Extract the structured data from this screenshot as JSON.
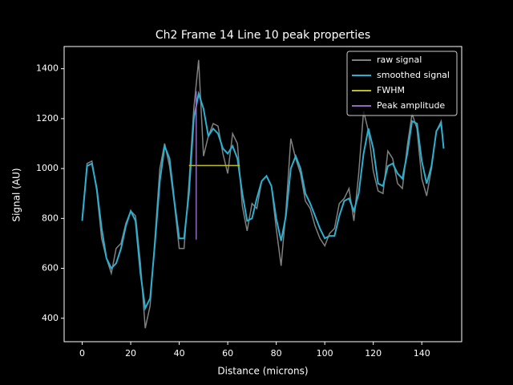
{
  "chart_data": {
    "type": "line",
    "title": "Ch2 Frame 14 Line 10 peak properties",
    "xlabel": "Distance (microns)",
    "ylabel": "Signal (AU)",
    "x": [
      0,
      2,
      4,
      6,
      8,
      10,
      12,
      14,
      16,
      18,
      20,
      22,
      24,
      26,
      28,
      30,
      32,
      34,
      36,
      38,
      40,
      42,
      44,
      46,
      48,
      50,
      52,
      54,
      56,
      58,
      60,
      62,
      64,
      66,
      68,
      70,
      72,
      74,
      76,
      78,
      80,
      82,
      84,
      86,
      88,
      90,
      92,
      94,
      96,
      98,
      100,
      102,
      104,
      106,
      108,
      110,
      112,
      114,
      116,
      118,
      120,
      122,
      124,
      126,
      128,
      130,
      132,
      134,
      136,
      138,
      140,
      142,
      144,
      146,
      148,
      149
    ],
    "series": [
      {
        "name": "raw signal",
        "color": "#808080",
        "values": [
          800,
          1020,
          1030,
          910,
          720,
          640,
          580,
          680,
          700,
          780,
          830,
          810,
          620,
          360,
          450,
          720,
          1000,
          1100,
          1010,
          860,
          680,
          680,
          940,
          1240,
          1435,
          1050,
          1130,
          1180,
          1170,
          1060,
          980,
          1140,
          1100,
          850,
          750,
          860,
          840,
          950,
          970,
          930,
          760,
          610,
          830,
          1120,
          1040,
          980,
          870,
          840,
          770,
          720,
          690,
          740,
          760,
          860,
          880,
          920,
          790,
          980,
          1230,
          1150,
          990,
          910,
          900,
          1070,
          1040,
          940,
          920,
          1090,
          1220,
          1160,
          960,
          890,
          1000,
          1150,
          1190,
          1080
        ]
      },
      {
        "name": "smoothed signal",
        "color": "#2ab0d0",
        "values": [
          790,
          1010,
          1020,
          920,
          760,
          640,
          600,
          620,
          680,
          770,
          830,
          790,
          580,
          440,
          480,
          700,
          950,
          1090,
          1040,
          870,
          720,
          720,
          900,
          1200,
          1300,
          1240,
          1130,
          1160,
          1140,
          1080,
          1060,
          1090,
          1040,
          900,
          790,
          800,
          880,
          950,
          970,
          930,
          800,
          710,
          810,
          1000,
          1050,
          1000,
          900,
          860,
          810,
          760,
          720,
          730,
          730,
          810,
          870,
          880,
          830,
          900,
          1060,
          1160,
          1080,
          940,
          930,
          1010,
          1020,
          980,
          960,
          1060,
          1190,
          1180,
          1030,
          940,
          1010,
          1150,
          1180,
          1080
        ]
      }
    ],
    "fwhm": {
      "name": "FWHM",
      "color": "#bcbd22",
      "y": 1012,
      "xmin": 44,
      "xmax": 65
    },
    "peak_amplitude": {
      "name": "Peak amplitude",
      "color": "#9467bd",
      "x": 47,
      "ymin": 715,
      "ymax": 1310
    },
    "xlim": [
      -7.45,
      156.45
    ],
    "ylim": [
      306,
      1489
    ],
    "xticks": [
      0,
      20,
      40,
      60,
      80,
      100,
      120,
      140
    ],
    "yticks": [
      400,
      600,
      800,
      1000,
      1200,
      1400
    ],
    "legend": "upper right"
  }
}
